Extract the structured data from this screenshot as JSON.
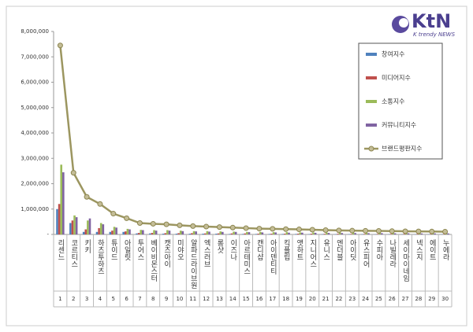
{
  "logo": {
    "mark": "KtN",
    "tagline": "K trendy NEWS"
  },
  "chart_data": {
    "type": "bar",
    "categories": [
      "리센느",
      "코르티스",
      "키키",
      "하츠투하츠",
      "튜이드",
      "아일릿",
      "투어스",
      "베이비몬스터",
      "캣츠아이",
      "미야오",
      "알파드라이브원",
      "엑스러브",
      "롱샷",
      "이즈나",
      "아르테미스",
      "캔디샵",
      "아이덴티티",
      "킥플립",
      "앳하트",
      "지니어스",
      "유니스",
      "엔더블",
      "아이딧",
      "유스피어",
      "수피아",
      "나빌레라",
      "세이마이네임",
      "넥스지",
      "에이트",
      "누에라"
    ],
    "ranks": [
      1,
      2,
      3,
      4,
      5,
      6,
      7,
      8,
      9,
      10,
      11,
      12,
      13,
      14,
      15,
      16,
      17,
      18,
      19,
      20,
      21,
      22,
      23,
      24,
      25,
      26,
      27,
      28,
      29,
      30
    ],
    "series": [
      {
        "name": "창여지수",
        "color": "#4f81bd",
        "values": [
          1000000,
          450000,
          100000,
          100000,
          100000,
          100000,
          40000,
          40000,
          30000,
          30000,
          30000,
          30000,
          30000,
          20000,
          20000,
          20000,
          20000,
          20000,
          20000,
          15000,
          15000,
          15000,
          15000,
          15000,
          10000,
          10000,
          10000,
          10000,
          10000,
          10000
        ]
      },
      {
        "name": "미디어지수",
        "color": "#c0504d",
        "values": [
          1200000,
          550000,
          200000,
          250000,
          150000,
          120000,
          60000,
          60000,
          50000,
          50000,
          50000,
          40000,
          40000,
          40000,
          40000,
          30000,
          30000,
          30000,
          30000,
          30000,
          25000,
          25000,
          20000,
          20000,
          20000,
          20000,
          20000,
          20000,
          15000,
          15000
        ]
      },
      {
        "name": "소통지수",
        "color": "#9bbb59",
        "values": [
          2750000,
          750000,
          550000,
          450000,
          300000,
          220000,
          180000,
          170000,
          170000,
          150000,
          130000,
          130000,
          120000,
          110000,
          100000,
          100000,
          90000,
          90000,
          80000,
          75000,
          70000,
          65000,
          60000,
          60000,
          60000,
          55000,
          50000,
          50000,
          50000,
          45000
        ]
      },
      {
        "name": "커뮤니티지수",
        "color": "#8064a2",
        "values": [
          2450000,
          680000,
          630000,
          400000,
          270000,
          200000,
          170000,
          150000,
          150000,
          130000,
          120000,
          110000,
          100000,
          100000,
          90000,
          80000,
          80000,
          70000,
          70000,
          65000,
          60000,
          55000,
          55000,
          50000,
          50000,
          45000,
          45000,
          40000,
          40000,
          40000
        ]
      },
      {
        "name": "브랜드평판지수",
        "type": "line",
        "color": "#9c9660",
        "values": [
          7450000,
          2430000,
          1480000,
          1200000,
          820000,
          640000,
          450000,
          420000,
          400000,
          360000,
          330000,
          310000,
          290000,
          270000,
          250000,
          230000,
          220000,
          210000,
          200000,
          185000,
          170000,
          160000,
          150000,
          145000,
          140000,
          130000,
          125000,
          120000,
          115000,
          110000
        ]
      }
    ],
    "ylim": [
      0,
      8000000
    ],
    "yticks": [
      {
        "value": 0,
        "label": "-"
      },
      {
        "value": 1000000,
        "label": "1,000,000"
      },
      {
        "value": 2000000,
        "label": "2,000,000"
      },
      {
        "value": 3000000,
        "label": "3,000,000"
      },
      {
        "value": 4000000,
        "label": "4,000,000"
      },
      {
        "value": 5000000,
        "label": "5,000,000"
      },
      {
        "value": 6000000,
        "label": "6,000,000"
      },
      {
        "value": 7000000,
        "label": "7,000,000"
      },
      {
        "value": 8000000,
        "label": "8,000,000"
      }
    ],
    "grid": false,
    "legend": "right"
  }
}
